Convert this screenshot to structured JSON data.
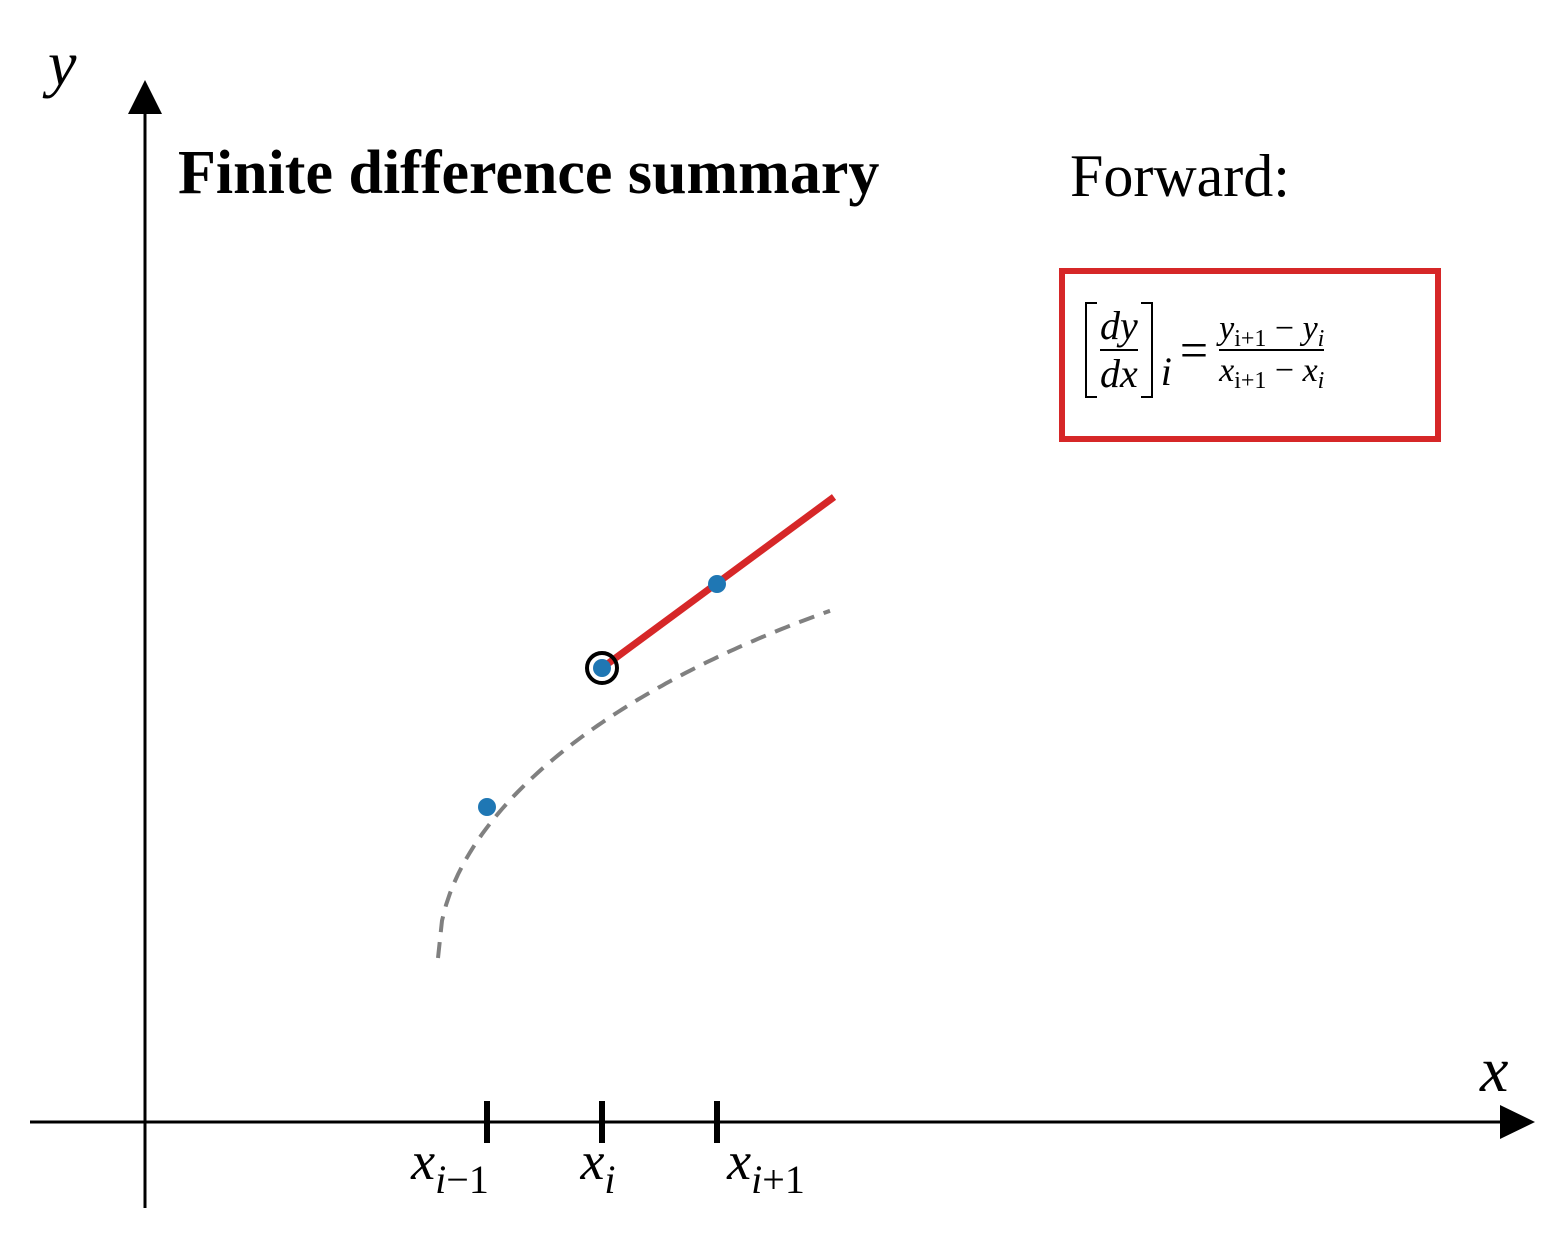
{
  "title": "Finite difference summary",
  "method_label": "Forward:",
  "axes": {
    "x_label": "x",
    "y_label": "y"
  },
  "ticks": [
    {
      "var": "x",
      "sub_italic": "i",
      "sub_rest": "−1"
    },
    {
      "var": "x",
      "sub_italic": "i",
      "sub_rest": ""
    },
    {
      "var": "x",
      "sub_italic": "i",
      "sub_rest": "+1"
    }
  ],
  "formula": {
    "lhs_num": "dy",
    "lhs_den": "dx",
    "lhs_sub": "i",
    "eq": "=",
    "num_a": "y",
    "num_a_sub": "i+1",
    "num_op": " − ",
    "num_b": "y",
    "num_b_sub": "i",
    "den_a": "x",
    "den_a_sub": "i+1",
    "den_op": " − ",
    "den_b": "x",
    "den_b_sub": "i"
  },
  "colors": {
    "secant": "#d62728",
    "points": "#1f77b4",
    "curve": "#808080",
    "highlight_ring": "#000000",
    "box_border": "#d62728"
  }
}
